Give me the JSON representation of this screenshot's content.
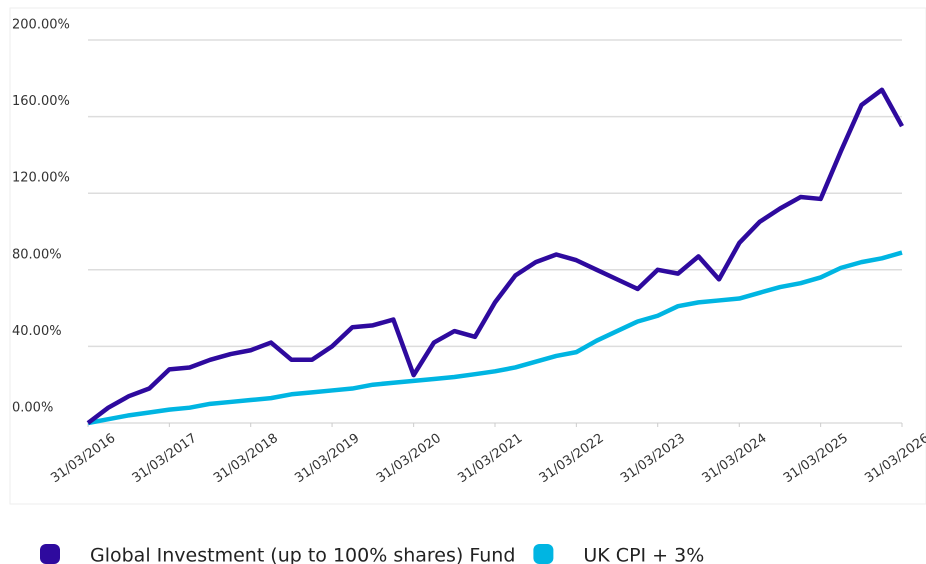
{
  "chart_data": {
    "type": "line",
    "x": [
      "31/03/2016",
      "30/06/2016",
      "30/09/2016",
      "31/12/2016",
      "31/03/2017",
      "30/06/2017",
      "30/09/2017",
      "31/12/2017",
      "31/03/2018",
      "30/06/2018",
      "30/09/2018",
      "31/12/2018",
      "31/03/2019",
      "30/06/2019",
      "30/09/2019",
      "31/12/2019",
      "31/03/2020",
      "30/06/2020",
      "30/09/2020",
      "31/12/2020",
      "31/03/2021",
      "30/06/2021",
      "30/09/2021",
      "31/12/2021",
      "31/03/2022",
      "30/06/2022",
      "30/09/2022",
      "31/12/2022",
      "31/03/2023",
      "30/06/2023",
      "30/09/2023",
      "31/12/2023",
      "31/03/2024",
      "30/06/2024",
      "30/09/2024",
      "31/12/2024",
      "31/03/2025",
      "30/06/2025",
      "30/09/2025",
      "31/12/2025",
      "31/03/2026"
    ],
    "series": [
      {
        "name": "Global Investment (up to 100% shares) Fund",
        "color": "#2e0a9e",
        "values": [
          0,
          8,
          14,
          18,
          28,
          29,
          33,
          36,
          38,
          42,
          33,
          33,
          40,
          50,
          51,
          54,
          25,
          42,
          48,
          45,
          63,
          77,
          84,
          88,
          85,
          80,
          75,
          70,
          80,
          78,
          87,
          75,
          94,
          105,
          112,
          118,
          117,
          142,
          166,
          174,
          155
        ]
      },
      {
        "name": "UK CPI + 3%",
        "color": "#00b5e2",
        "values": [
          0,
          2,
          4,
          5.5,
          7,
          8,
          10,
          11,
          12,
          13,
          15,
          16,
          17,
          18,
          20,
          21,
          22,
          23,
          24,
          25.5,
          27,
          29,
          32,
          35,
          37,
          43,
          48,
          53,
          56,
          61,
          63,
          64,
          65,
          68,
          71,
          73,
          76,
          81,
          84,
          86,
          89
        ]
      }
    ],
    "xlim": [
      "31/03/2016",
      "31/03/2026"
    ],
    "xticks": [
      "31/03/2016",
      "31/03/2017",
      "31/03/2018",
      "31/03/2019",
      "31/03/2020",
      "31/03/2021",
      "31/03/2022",
      "31/03/2023",
      "31/03/2024",
      "31/03/2025",
      "31/03/2026"
    ],
    "ylim": [
      0,
      200
    ],
    "yticks": [
      {
        "value": 0,
        "label": "0.00%"
      },
      {
        "value": 40,
        "label": "40.00%"
      },
      {
        "value": 80,
        "label": "80.00%"
      },
      {
        "value": 120,
        "label": "120.00%"
      },
      {
        "value": 160,
        "label": "160.00%"
      },
      {
        "value": 200,
        "label": "200.00%"
      }
    ],
    "grid": true
  }
}
